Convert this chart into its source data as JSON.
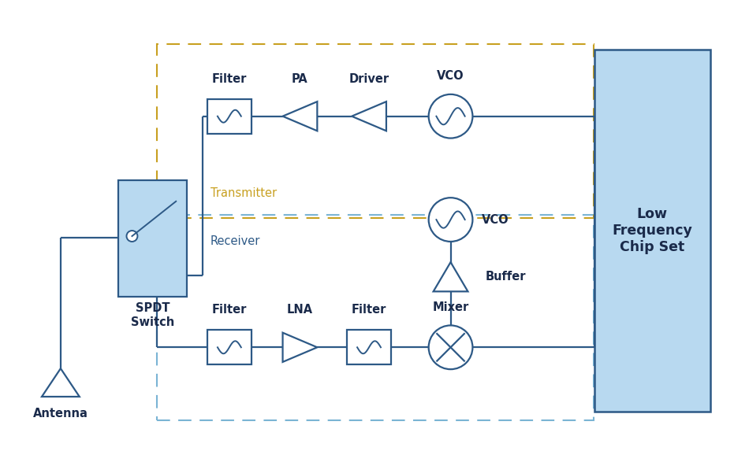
{
  "bg_color": "#ffffff",
  "line_color": "#2d5986",
  "box_fill": "#ffffff",
  "chipset_fill": "#b8d9f0",
  "chipset_border": "#2d5986",
  "switch_fill": "#b8d9f0",
  "switch_border": "#2d5986",
  "receiver_dash_color": "#7ab4d4",
  "transmitter_dash_color": "#c8a020",
  "text_color": "#1a2a4a",
  "font_size": 10.5,
  "title_font": 12.5,
  "receiver_label": "Receiver",
  "transmitter_label": "Transmitter",
  "chipset_label": "Low\nFrequency\nChip Set",
  "antenna_label": "Antenna",
  "switch_label": "SPDT\nSwitch",
  "buffer_label": "Buffer",
  "vco_rx_label": "VCO",
  "vco_tx_label": "VCO"
}
